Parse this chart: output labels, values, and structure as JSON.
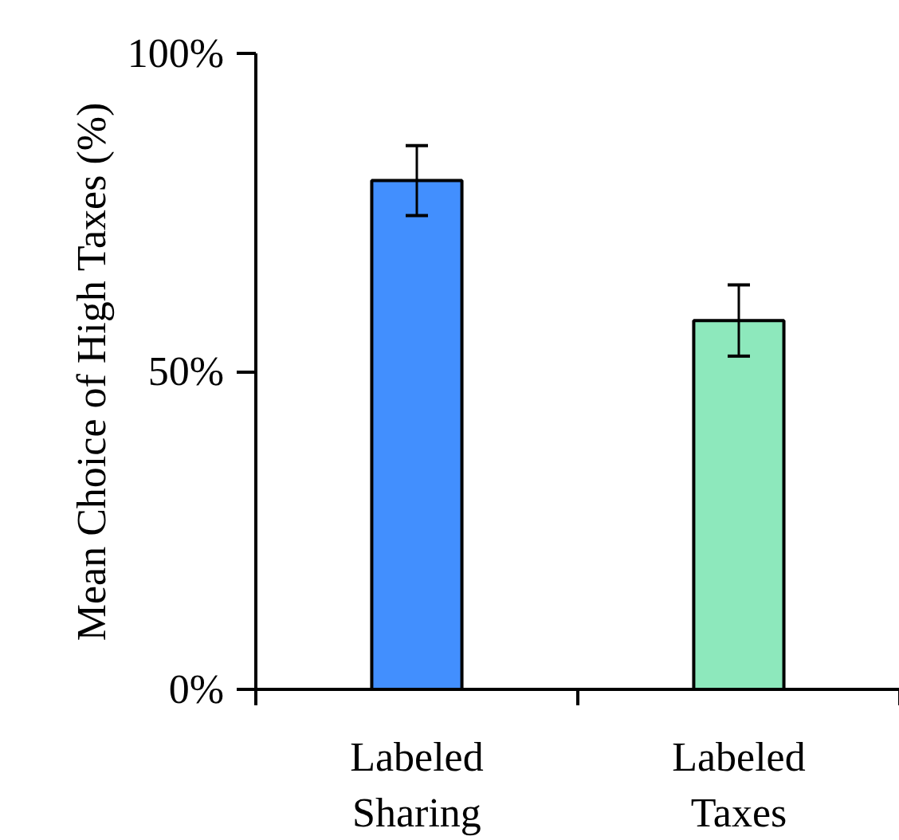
{
  "chart_data": {
    "type": "bar",
    "ylabel": "Mean Choice of High Taxes (%)",
    "categories": [
      "Labeled\nSharing",
      "Labeled\nTaxes"
    ],
    "values": [
      80,
      58
    ],
    "colors": [
      "#428ffe",
      "#8de8bc"
    ],
    "errors": [
      5.5,
      5.6
    ],
    "ylim": [
      0,
      100
    ],
    "yticks": [
      {
        "value": 0,
        "label": "0%"
      },
      {
        "value": 50,
        "label": "50%"
      },
      {
        "value": 100,
        "label": "100%"
      }
    ],
    "grid": false
  }
}
